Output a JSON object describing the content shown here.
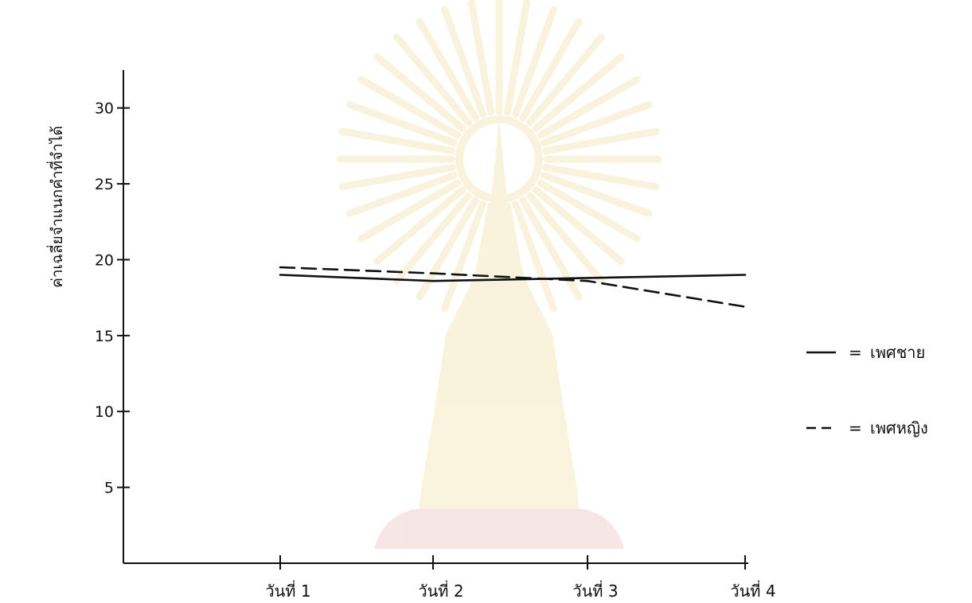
{
  "chart_data": {
    "type": "line",
    "title": "",
    "xlabel": "",
    "ylabel": "ค่าเฉลี่ยจำแนกคำที่จำได้",
    "categories": [
      "วันที่ 1",
      "วันที่ 2",
      "วันที่ 3",
      "วันที่ 4"
    ],
    "yticks": [
      "5",
      "10",
      "15",
      "20",
      "25",
      "30"
    ],
    "ylim": [
      0,
      32.5
    ],
    "grid": false,
    "legend_position": "right",
    "series": [
      {
        "name": "เพศชาย",
        "style": "solid",
        "color": "#111111",
        "values": [
          19.0,
          18.6,
          18.8,
          19.0
        ]
      },
      {
        "name": "เพศหญิง",
        "style": "dashed",
        "color": "#111111",
        "values": [
          19.5,
          19.1,
          18.6,
          16.9
        ]
      }
    ],
    "legend": [
      {
        "symbol": "—",
        "equals": "=",
        "label": "เพศชาย"
      },
      {
        "symbol": "– –",
        "equals": "=",
        "label": "เพศหญิง"
      }
    ]
  }
}
